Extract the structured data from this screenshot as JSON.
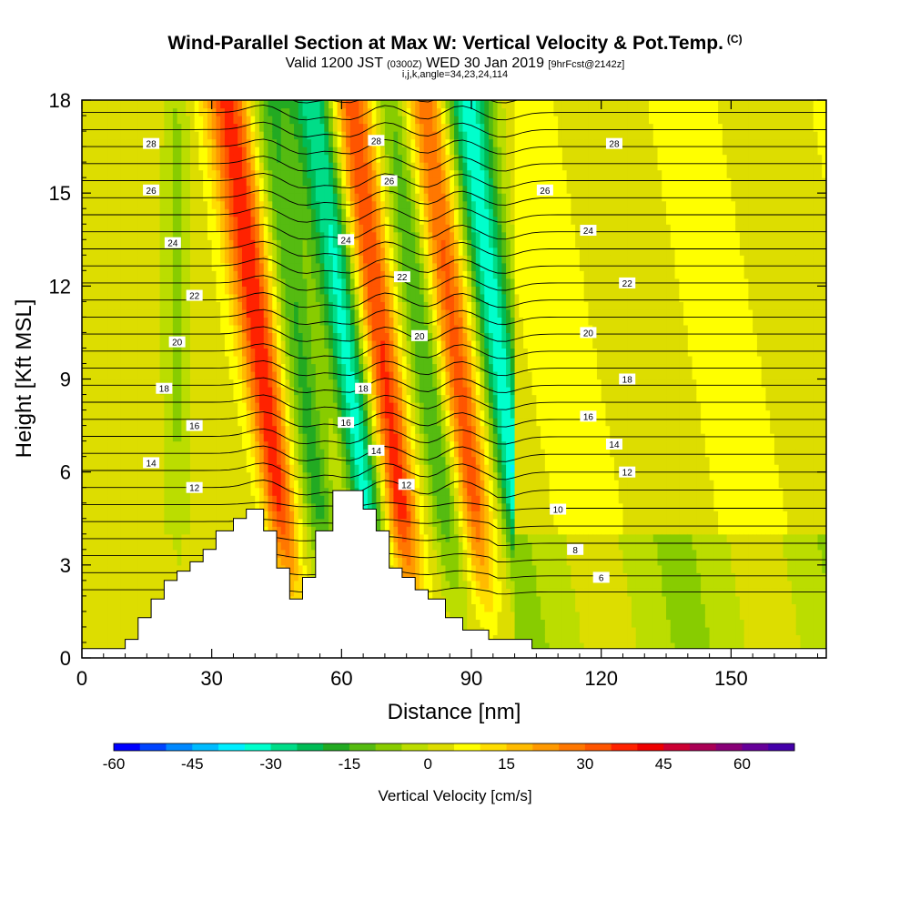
{
  "chart_data": {
    "type": "heatmap",
    "title": "Wind-Parallel Section at Max W: Vertical Velocity & Pot.Temp.",
    "copyright_mark": "(C)",
    "subtitle_main": "Valid 1200 JST",
    "subtitle_utc": "(0300Z)",
    "subtitle_date": "WED 30 Jan 2019",
    "subtitle_fcst": "[9hrFcst@2142z]",
    "subtitle2": "i,j,k,angle=34,23,24,114",
    "xlabel": "Distance [nm]",
    "ylabel": "Height [Kft MSL]",
    "xlim": [
      0,
      172
    ],
    "ylim": [
      0,
      18
    ],
    "x_ticks": [
      "0",
      "30",
      "60",
      "90",
      "120",
      "150"
    ],
    "y_ticks": [
      "0",
      "3",
      "6",
      "9",
      "12",
      "15",
      "18"
    ],
    "colorbar": {
      "title": "Vertical Velocity [cm/s]",
      "range": [
        -60,
        70
      ],
      "tick_labels": [
        "-60",
        "-45",
        "-30",
        "-15",
        "0",
        "15",
        "30",
        "45",
        "60"
      ],
      "colors": [
        "#0000ff",
        "#0044ff",
        "#0088ff",
        "#00bbff",
        "#00eeff",
        "#00ffcc",
        "#00dd88",
        "#00bb55",
        "#22aa22",
        "#55bb11",
        "#88cc00",
        "#bbdd00",
        "#dddd00",
        "#ffff00",
        "#ffdd00",
        "#ffbb00",
        "#ff9900",
        "#ff7700",
        "#ff5500",
        "#ff2200",
        "#ee0000",
        "#cc0033",
        "#aa0055",
        "#880077",
        "#660099",
        "#4400aa"
      ]
    },
    "updraft_bands": [
      {
        "x_center": 42,
        "peak": 35,
        "kind": "updraft"
      },
      {
        "x_center": 51,
        "peak": -20,
        "kind": "downdraft"
      },
      {
        "x_center": 62,
        "peak": -35,
        "kind": "downdraft"
      },
      {
        "x_center": 70,
        "peak": 35,
        "kind": "updraft"
      },
      {
        "x_center": 80,
        "peak": -18,
        "kind": "downdraft"
      },
      {
        "x_center": 87,
        "peak": 30,
        "kind": "updraft"
      },
      {
        "x_center": 97,
        "peak": -38,
        "kind": "downdraft"
      }
    ],
    "isentrope_labels": [
      {
        "text": "6",
        "x": 120,
        "y": 2.6
      },
      {
        "text": "8",
        "x": 114,
        "y": 3.5
      },
      {
        "text": "10",
        "x": 110,
        "y": 4.8
      },
      {
        "text": "12",
        "x": 26,
        "y": 5.5
      },
      {
        "text": "12",
        "x": 75,
        "y": 5.6
      },
      {
        "text": "12",
        "x": 126,
        "y": 6.0
      },
      {
        "text": "14",
        "x": 16,
        "y": 6.3
      },
      {
        "text": "14",
        "x": 68,
        "y": 6.7
      },
      {
        "text": "14",
        "x": 123,
        "y": 6.9
      },
      {
        "text": "16",
        "x": 26,
        "y": 7.5
      },
      {
        "text": "16",
        "x": 61,
        "y": 7.6
      },
      {
        "text": "16",
        "x": 117,
        "y": 7.8
      },
      {
        "text": "18",
        "x": 19,
        "y": 8.7
      },
      {
        "text": "18",
        "x": 65,
        "y": 8.7
      },
      {
        "text": "18",
        "x": 126,
        "y": 9.0
      },
      {
        "text": "20",
        "x": 22,
        "y": 10.2
      },
      {
        "text": "20",
        "x": 78,
        "y": 10.4
      },
      {
        "text": "20",
        "x": 117,
        "y": 10.5
      },
      {
        "text": "22",
        "x": 26,
        "y": 11.7
      },
      {
        "text": "22",
        "x": 74,
        "y": 12.3
      },
      {
        "text": "22",
        "x": 126,
        "y": 12.1
      },
      {
        "text": "24",
        "x": 21,
        "y": 13.4
      },
      {
        "text": "24",
        "x": 61,
        "y": 13.5
      },
      {
        "text": "24",
        "x": 117,
        "y": 13.8
      },
      {
        "text": "26",
        "x": 16,
        "y": 15.1
      },
      {
        "text": "26",
        "x": 71,
        "y": 15.4
      },
      {
        "text": "26",
        "x": 107,
        "y": 15.1
      },
      {
        "text": "28",
        "x": 16,
        "y": 16.6
      },
      {
        "text": "28",
        "x": 68,
        "y": 16.7
      },
      {
        "text": "28",
        "x": 123,
        "y": 16.6
      }
    ],
    "terrain_profile": [
      [
        0,
        0.3
      ],
      [
        10,
        0.3
      ],
      [
        10,
        0.6
      ],
      [
        13,
        0.6
      ],
      [
        13,
        1.3
      ],
      [
        16,
        1.3
      ],
      [
        16,
        1.9
      ],
      [
        19,
        1.9
      ],
      [
        19,
        2.5
      ],
      [
        22,
        2.5
      ],
      [
        22,
        2.8
      ],
      [
        25,
        2.8
      ],
      [
        25,
        3.1
      ],
      [
        28,
        3.1
      ],
      [
        28,
        3.5
      ],
      [
        31,
        3.5
      ],
      [
        31,
        4.1
      ],
      [
        35,
        4.1
      ],
      [
        35,
        4.5
      ],
      [
        38,
        4.5
      ],
      [
        38,
        4.8
      ],
      [
        42,
        4.8
      ],
      [
        42,
        4.1
      ],
      [
        45,
        4.1
      ],
      [
        45,
        2.9
      ],
      [
        48,
        2.9
      ],
      [
        48,
        1.9
      ],
      [
        51,
        1.9
      ],
      [
        51,
        2.6
      ],
      [
        54,
        2.6
      ],
      [
        54,
        4.1
      ],
      [
        58,
        4.1
      ],
      [
        58,
        5.4
      ],
      [
        65,
        5.4
      ],
      [
        65,
        4.8
      ],
      [
        68,
        4.8
      ],
      [
        68,
        4.1
      ],
      [
        71,
        4.1
      ],
      [
        71,
        2.9
      ],
      [
        74,
        2.9
      ],
      [
        74,
        2.6
      ],
      [
        77,
        2.6
      ],
      [
        77,
        2.2
      ],
      [
        80,
        2.2
      ],
      [
        80,
        1.9
      ],
      [
        84,
        1.9
      ],
      [
        84,
        1.3
      ],
      [
        88,
        1.3
      ],
      [
        88,
        0.9
      ],
      [
        94,
        0.9
      ],
      [
        94,
        0.6
      ],
      [
        104,
        0.6
      ],
      [
        104,
        0.3
      ],
      [
        172,
        0.3
      ]
    ]
  }
}
